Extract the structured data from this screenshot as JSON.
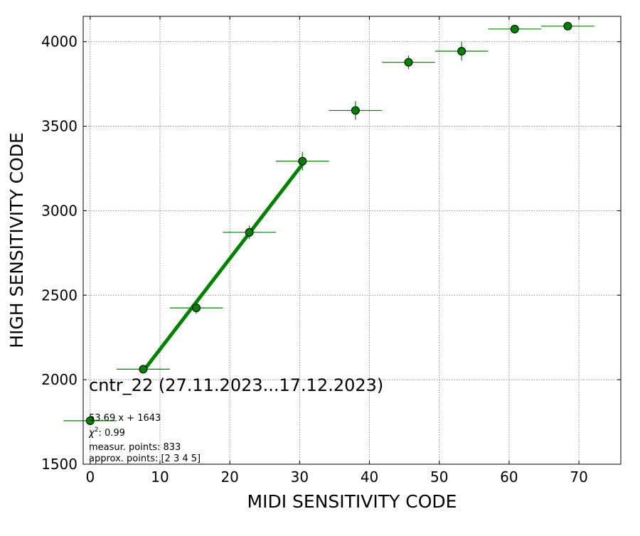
{
  "chart_data": {
    "type": "scatter",
    "title": "",
    "xlabel": "MIDI SENSITIVITY CODE",
    "ylabel": "HIGH SENSITIVITY CODE",
    "xlim": [
      -1,
      76
    ],
    "ylim": [
      1500,
      4150
    ],
    "xticks": [
      0,
      10,
      20,
      30,
      40,
      50,
      60,
      70
    ],
    "yticks": [
      1500,
      2000,
      2500,
      3000,
      3500,
      4000
    ],
    "grid": true,
    "series": [
      {
        "color": "#008000",
        "points": [
          {
            "x": 0.0,
            "y": 1757,
            "xerr": 3.8,
            "yerr": 0
          },
          {
            "x": 7.6,
            "y": 2062,
            "xerr": 3.8,
            "yerr": 15
          },
          {
            "x": 15.2,
            "y": 2425,
            "xerr": 3.8,
            "yerr": 35
          },
          {
            "x": 22.8,
            "y": 2872,
            "xerr": 3.8,
            "yerr": 40
          },
          {
            "x": 30.4,
            "y": 3293,
            "xerr": 3.8,
            "yerr": 55
          },
          {
            "x": 38.0,
            "y": 3593,
            "xerr": 3.8,
            "yerr": 55
          },
          {
            "x": 45.6,
            "y": 3878,
            "xerr": 3.8,
            "yerr": 40
          },
          {
            "x": 53.2,
            "y": 3944,
            "xerr": 3.8,
            "yerr": 55
          },
          {
            "x": 60.8,
            "y": 4075,
            "xerr": 3.8,
            "yerr": 0
          },
          {
            "x": 68.4,
            "y": 4092,
            "xerr": 3.8,
            "yerr": 0
          }
        ]
      }
    ],
    "fit_line": {
      "slope": 53.69,
      "intercept": 1643,
      "x_range": [
        7.6,
        30.4
      ],
      "color": "#008000"
    },
    "annotations": {
      "main": "cntr_22 (27.11.2023...17.12.2023)",
      "equation": "53.69 x + 1643",
      "chi2_value": ": 0.99",
      "measur": "measur. points: 833",
      "approx": "approx. points: [2 3 4 5]"
    }
  }
}
